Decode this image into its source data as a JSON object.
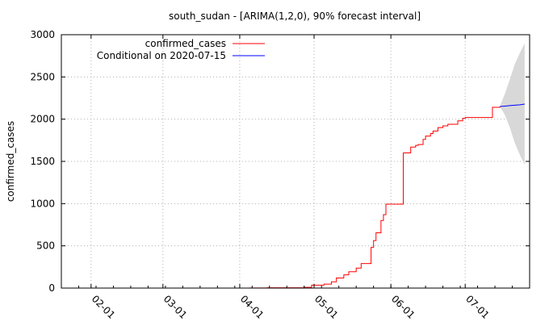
{
  "chart_data": {
    "type": "line",
    "title": "south_sudan -  [ARIMA(1,2,0), 90% forecast interval]",
    "xlabel": "",
    "ylabel": "confirmed_cases",
    "ylim": [
      0,
      3000
    ],
    "xlim": [
      "2020-01-20",
      "2020-07-27"
    ],
    "grid": true,
    "legend_position": "top-left",
    "x_ticks": [
      "02-01",
      "03-01",
      "04-01",
      "05-01",
      "06-01",
      "07-01"
    ],
    "x_tick_dates": [
      "2020-02-01",
      "2020-03-01",
      "2020-04-01",
      "2020-05-01",
      "2020-06-01",
      "2020-07-01"
    ],
    "y_ticks": [
      0,
      500,
      1000,
      1500,
      2000,
      2500,
      3000
    ],
    "series": [
      {
        "name": "confirmed_cases",
        "color": "#ff0000",
        "step": true,
        "points": [
          [
            "2020-04-05",
            1
          ],
          [
            "2020-04-12",
            4
          ],
          [
            "2020-04-20",
            4
          ],
          [
            "2020-04-27",
            8
          ],
          [
            "2020-04-30",
            35
          ],
          [
            "2020-05-05",
            46
          ],
          [
            "2020-05-08",
            74
          ],
          [
            "2020-05-10",
            120
          ],
          [
            "2020-05-13",
            156
          ],
          [
            "2020-05-15",
            194
          ],
          [
            "2020-05-18",
            236
          ],
          [
            "2020-05-20",
            290
          ],
          [
            "2020-05-24",
            481
          ],
          [
            "2020-05-25",
            563
          ],
          [
            "2020-05-26",
            655
          ],
          [
            "2020-05-28",
            800
          ],
          [
            "2020-05-29",
            870
          ],
          [
            "2020-05-30",
            994
          ],
          [
            "2020-06-06",
            1600
          ],
          [
            "2020-06-08",
            1600
          ],
          [
            "2020-06-09",
            1670
          ],
          [
            "2020-06-11",
            1690
          ],
          [
            "2020-06-12",
            1700
          ],
          [
            "2020-06-14",
            1760
          ],
          [
            "2020-06-15",
            1800
          ],
          [
            "2020-06-17",
            1830
          ],
          [
            "2020-06-18",
            1860
          ],
          [
            "2020-06-20",
            1900
          ],
          [
            "2020-06-22",
            1920
          ],
          [
            "2020-06-24",
            1940
          ],
          [
            "2020-06-28",
            1980
          ],
          [
            "2020-06-30",
            2010
          ],
          [
            "2020-07-01",
            2020
          ],
          [
            "2020-07-11",
            2020
          ],
          [
            "2020-07-12",
            2140
          ],
          [
            "2020-07-15",
            2150
          ]
        ]
      },
      {
        "name": "Conditional on 2020-07-15",
        "color": "#0000ff",
        "points": [
          [
            "2020-07-15",
            2150
          ],
          [
            "2020-07-17",
            2155
          ],
          [
            "2020-07-19",
            2160
          ],
          [
            "2020-07-21",
            2165
          ],
          [
            "2020-07-23",
            2170
          ],
          [
            "2020-07-25",
            2178
          ]
        ]
      }
    ],
    "forecast_interval": {
      "label": "90% forecast interval",
      "color": "#d8d8d8",
      "points": [
        [
          "2020-07-15",
          2150,
          2150
        ],
        [
          "2020-07-17",
          2050,
          2300
        ],
        [
          "2020-07-19",
          1900,
          2470
        ],
        [
          "2020-07-21",
          1720,
          2650
        ],
        [
          "2020-07-23",
          1580,
          2780
        ],
        [
          "2020-07-25",
          1460,
          2900
        ]
      ]
    }
  }
}
